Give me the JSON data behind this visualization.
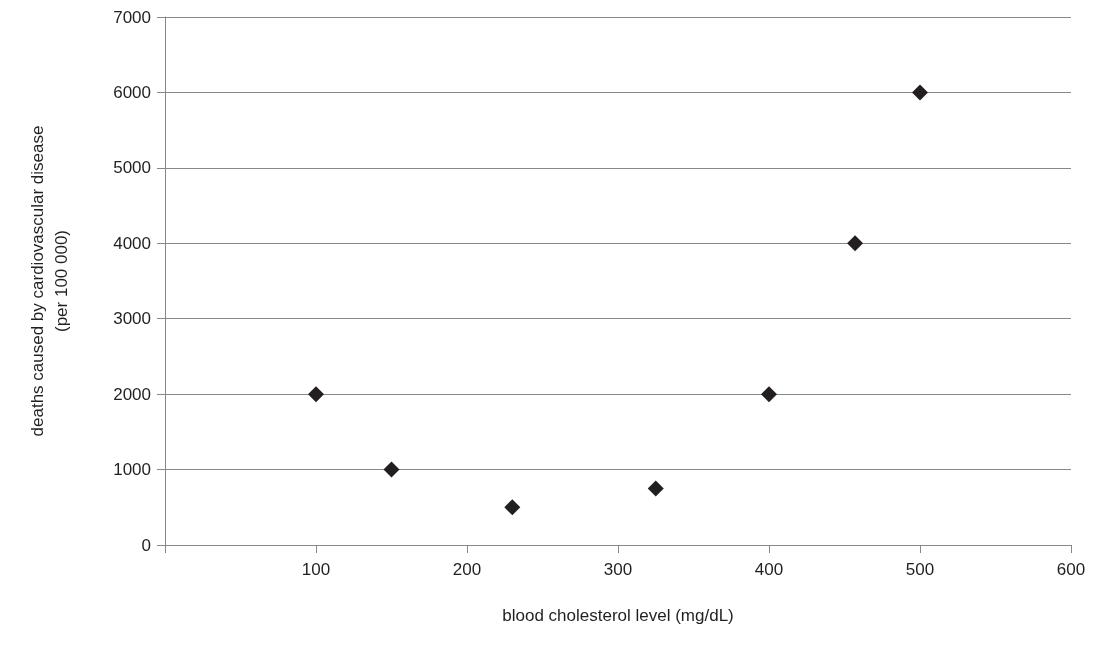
{
  "chart_data": {
    "type": "scatter",
    "xlabel": "blood cholesterol level (mg/dL)",
    "ylabel": "deaths caused by cardiovascular disease\n(per 100 000)",
    "x": [
      100,
      150,
      230,
      325,
      400,
      457,
      500
    ],
    "values": [
      2000,
      1000,
      500,
      750,
      2000,
      4000,
      6000
    ],
    "color": "#231f20",
    "marker": "diamond",
    "xlim": [
      0,
      600
    ],
    "xticks": [
      {
        "value": 0,
        "label": null
      },
      100,
      200,
      300,
      400,
      500,
      600
    ],
    "ylim": [
      0,
      7000
    ],
    "yticks": [
      0,
      1000,
      2000,
      3000,
      4000,
      5000,
      6000,
      7000
    ],
    "grid": "y"
  }
}
